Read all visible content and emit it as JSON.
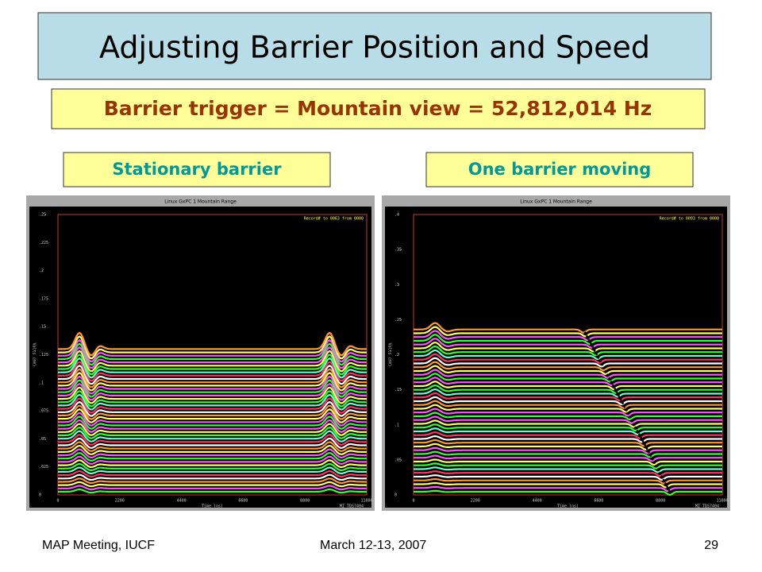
{
  "title": "Adjusting Barrier Position and Speed",
  "subtitle": "Barrier trigger = Mountain view = 52,812,014 Hz",
  "panels": [
    {
      "label": "Stationary barrier",
      "window_title": "Linux GxPC 1  Mountain Range",
      "record": "Record# to 0063 from 0000",
      "yticks": [
        "0",
        ".025",
        ".05",
        ".075",
        ".1",
        ".125",
        ".15",
        ".175",
        ".2",
        ".225",
        ".25"
      ],
      "xticks": [
        "0",
        "2200",
        "4400",
        "6600",
        "8800",
        "11000"
      ],
      "x_label": "Time (ns)",
      "y_label": "Volts (mV)",
      "instrument": "MI TDS7404"
    },
    {
      "label": "One barrier moving",
      "window_title": "Linux GxPC 1  Mountain Range",
      "record": "Record# to 0093 from 0000",
      "yticks": [
        "0",
        ".05",
        ".1",
        ".15",
        ".2",
        ".25",
        ".3",
        ".35",
        ".4"
      ],
      "xticks": [
        "0",
        "2200",
        "4400",
        "6600",
        "8800",
        "11000"
      ],
      "x_label": "Time (ns)",
      "y_label": "Volts (mV)",
      "instrument": "MI TDS7404"
    }
  ],
  "footer": {
    "left": "MAP Meeting, IUCF",
    "center": "March 12-13, 2007",
    "right": "29"
  }
}
